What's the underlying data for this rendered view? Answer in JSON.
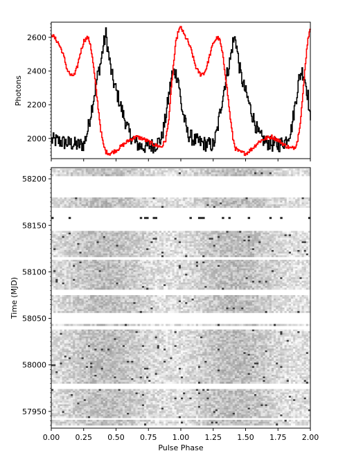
{
  "chart_data": [
    {
      "type": "line",
      "panel": "top",
      "xlabel": "",
      "ylabel": "Photons",
      "xlim": [
        0.0,
        2.0
      ],
      "ylim": [
        1880,
        2690
      ],
      "yticks": [
        2000,
        2200,
        2400,
        2600
      ],
      "grid": false,
      "series": [
        {
          "color": "#000000",
          "x": [
            0.0,
            0.05,
            0.1,
            0.15,
            0.2,
            0.25,
            0.28,
            0.31,
            0.34,
            0.36,
            0.38,
            0.4,
            0.42,
            0.44,
            0.46,
            0.48,
            0.5,
            0.52,
            0.55,
            0.6,
            0.65,
            0.7,
            0.75,
            0.8,
            0.85,
            0.88,
            0.91,
            0.93,
            0.95,
            0.98,
            1.0,
            1.05,
            1.1,
            1.15,
            1.2,
            1.25,
            1.28,
            1.31,
            1.34,
            1.36,
            1.38,
            1.4,
            1.42,
            1.44,
            1.46,
            1.48,
            1.5,
            1.52,
            1.55,
            1.6,
            1.65,
            1.7,
            1.75,
            1.8,
            1.85,
            1.88,
            1.91,
            1.93,
            1.95,
            1.98,
            2.0
          ],
          "y": [
            1990,
            1985,
            1975,
            1970,
            1960,
            1965,
            2050,
            2180,
            2300,
            2390,
            2450,
            2550,
            2620,
            2500,
            2400,
            2330,
            2280,
            2230,
            2150,
            2030,
            1970,
            1950,
            1955,
            1960,
            2000,
            2120,
            2280,
            2380,
            2400,
            2350,
            2200,
            2030,
            1990,
            1975,
            1965,
            1960,
            2050,
            2200,
            2330,
            2400,
            2470,
            2570,
            2600,
            2480,
            2380,
            2320,
            2270,
            2220,
            2140,
            2020,
            1980,
            1965,
            1960,
            1980,
            2050,
            2200,
            2350,
            2400,
            2380,
            2250,
            2080
          ]
        },
        {
          "color": "#ff0000",
          "x": [
            0.0,
            0.02,
            0.05,
            0.08,
            0.1,
            0.12,
            0.15,
            0.18,
            0.2,
            0.22,
            0.25,
            0.28,
            0.3,
            0.32,
            0.35,
            0.38,
            0.4,
            0.42,
            0.45,
            0.5,
            0.55,
            0.6,
            0.65,
            0.7,
            0.75,
            0.8,
            0.85,
            0.88,
            0.9,
            0.92,
            0.94,
            0.96,
            0.98,
            1.0,
            1.02,
            1.05,
            1.08,
            1.1,
            1.12,
            1.15,
            1.18,
            1.2,
            1.22,
            1.25,
            1.28,
            1.3,
            1.32,
            1.35,
            1.38,
            1.4,
            1.42,
            1.45,
            1.5,
            1.55,
            1.6,
            1.65,
            1.7,
            1.75,
            1.8,
            1.85,
            1.88,
            1.9,
            1.92,
            1.94,
            1.96,
            1.98,
            2.0
          ],
          "y": [
            2620,
            2600,
            2570,
            2520,
            2470,
            2410,
            2370,
            2380,
            2430,
            2500,
            2580,
            2600,
            2560,
            2450,
            2250,
            2050,
            1960,
            1920,
            1910,
            1930,
            1960,
            1990,
            2010,
            2000,
            1980,
            1960,
            1950,
            1990,
            2080,
            2250,
            2430,
            2570,
            2640,
            2660,
            2620,
            2580,
            2520,
            2460,
            2410,
            2380,
            2390,
            2430,
            2490,
            2570,
            2600,
            2580,
            2500,
            2330,
            2120,
            2000,
            1940,
            1920,
            1910,
            1940,
            1980,
            2000,
            2010,
            1990,
            1960,
            1940,
            1950,
            1990,
            2100,
            2260,
            2450,
            2600,
            2650
          ]
        }
      ]
    },
    {
      "type": "heatmap",
      "panel": "bottom",
      "xlabel": "Pulse Phase",
      "ylabel": "Time (MJD)",
      "xlim": [
        0.0,
        2.0
      ],
      "ylim": [
        57932,
        58212
      ],
      "xticks": [
        0.0,
        0.25,
        0.5,
        0.75,
        1.0,
        1.25,
        1.5,
        1.75,
        2.0
      ],
      "xtick_labels": [
        "0.00",
        "0.25",
        "0.50",
        "0.75",
        "1.00",
        "1.25",
        "1.50",
        "1.75",
        "2.00"
      ],
      "yticks": [
        57950,
        58000,
        58050,
        58100,
        58150,
        58200
      ],
      "colormap": "grayscale",
      "data_segments_mjd": [
        [
          57935,
          57941
        ],
        [
          57943,
          57974
        ],
        [
          57980,
          58038
        ],
        [
          58042,
          58044
        ],
        [
          58056,
          58075
        ],
        [
          58081,
          58113
        ],
        [
          58116,
          58144
        ],
        [
          58157,
          58159
        ],
        [
          58169,
          58180
        ],
        [
          58203,
          58211
        ]
      ]
    }
  ]
}
